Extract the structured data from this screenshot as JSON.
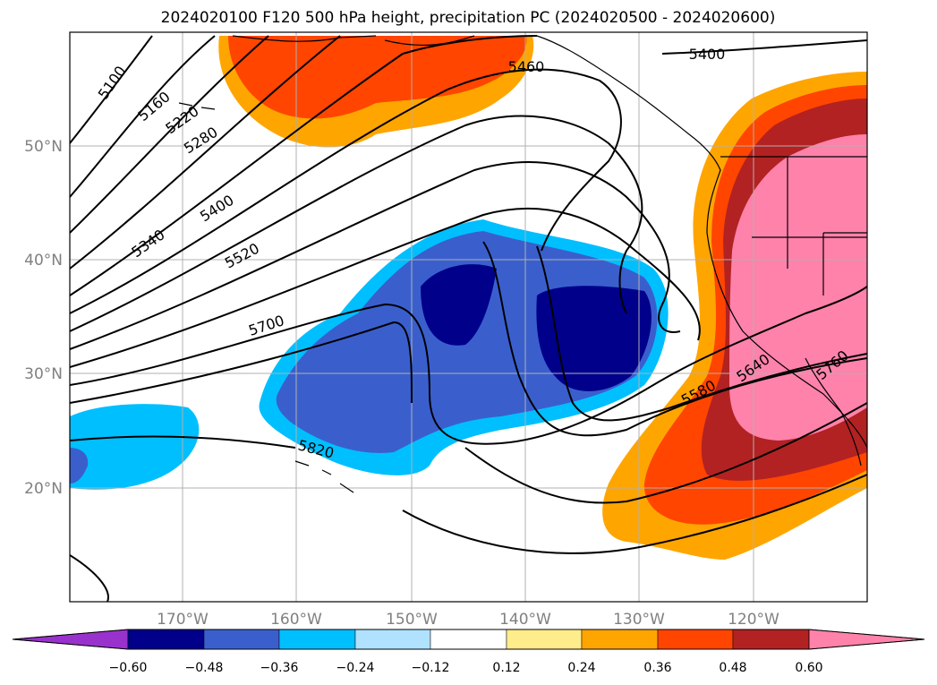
{
  "title": "2024020100 F120 500 hPa height, precipitation PC (2024020500 - 2024020600)",
  "lat_labels": [
    "50°N",
    "40°N",
    "30°N",
    "20°N"
  ],
  "lon_labels": [
    "170°W",
    "160°W",
    "150°W",
    "140°W",
    "130°W",
    "120°W"
  ],
  "contour_labels": [
    "5100",
    "5160",
    "5220",
    "5280",
    "5340",
    "5400",
    "5520",
    "5700",
    "5820",
    "5460",
    "5400",
    "5580",
    "5640",
    "5760"
  ],
  "colorbar": {
    "ticks": [
      "−0.60",
      "−0.48",
      "−0.36",
      "−0.24",
      "−0.12",
      "0.12",
      "0.24",
      "0.36",
      "0.48",
      "0.60"
    ],
    "colors": [
      "#9932cc",
      "#00008b",
      "#3a5fcd",
      "#00bfff",
      "#b0e2ff",
      "#ffffff",
      "#ffec8b",
      "#ffa500",
      "#ff4500",
      "#b22222",
      "#ff82ab"
    ]
  }
}
